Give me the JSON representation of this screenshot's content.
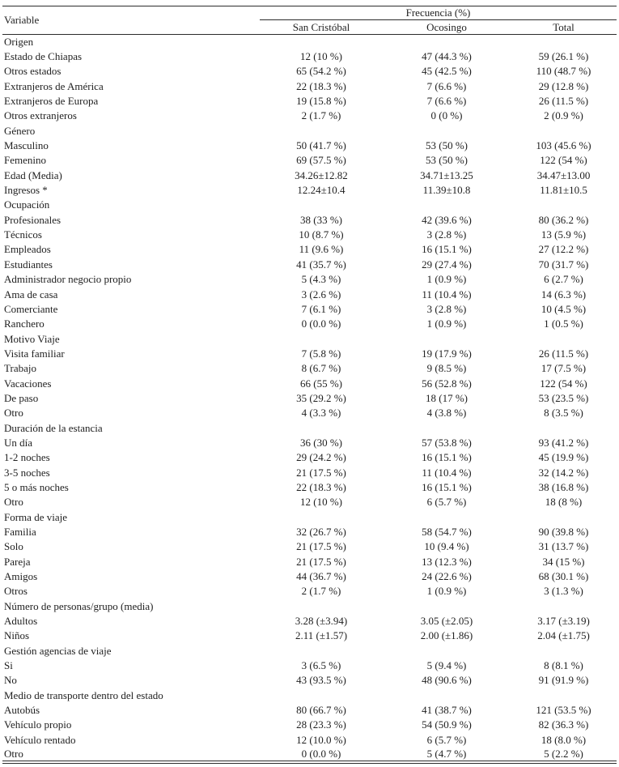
{
  "table": {
    "header": {
      "variable_label": "Variable",
      "group_label": "Frecuencia (%)",
      "columns": [
        "San Cristóbal",
        "Ocosingo",
        "Total"
      ]
    },
    "rows": [
      {
        "type": "section",
        "label": "Origen",
        "values": [
          "",
          "",
          ""
        ]
      },
      {
        "type": "data",
        "label": "Estado de Chiapas",
        "values": [
          "12 (10 %)",
          "47 (44.3 %)",
          "59 (26.1 %)"
        ]
      },
      {
        "type": "data",
        "label": "Otros estados",
        "values": [
          "65 (54.2 %)",
          "45 (42.5 %)",
          "110 (48.7 %)"
        ]
      },
      {
        "type": "data",
        "label": "Extranjeros de América",
        "values": [
          "22 (18.3 %)",
          "7 (6.6 %)",
          "29 (12.8 %)"
        ]
      },
      {
        "type": "data",
        "label": "Extranjeros de Europa",
        "values": [
          "19 (15.8 %)",
          "7 (6.6 %)",
          "26 (11.5 %)"
        ]
      },
      {
        "type": "data",
        "label": "Otros extranjeros",
        "values": [
          "2 (1.7 %)",
          "0 (0 %)",
          "2 (0.9 %)"
        ]
      },
      {
        "type": "section",
        "label": "Género",
        "values": [
          "",
          "",
          ""
        ]
      },
      {
        "type": "data",
        "label": "Masculino",
        "values": [
          "50 (41.7 %)",
          "53 (50 %)",
          "103 (45.6 %)"
        ]
      },
      {
        "type": "data",
        "label": "Femenino",
        "values": [
          "69 (57.5 %)",
          "53 (50 %)",
          "122 (54 %)"
        ]
      },
      {
        "type": "data",
        "label": "Edad (Media)",
        "values": [
          "34.26±12.82",
          "34.71±13.25",
          "34.47±13.00"
        ]
      },
      {
        "type": "data",
        "label": "Ingresos *",
        "values": [
          "12.24±10.4",
          "11.39±10.8",
          "11.81±10.5"
        ]
      },
      {
        "type": "section",
        "label": "Ocupación",
        "values": [
          "",
          "",
          ""
        ]
      },
      {
        "type": "data",
        "label": "Profesionales",
        "values": [
          "38 (33 %)",
          "42 (39.6 %)",
          "80 (36.2 %)"
        ]
      },
      {
        "type": "data",
        "label": "Técnicos",
        "values": [
          "10 (8.7 %)",
          "3 (2.8 %)",
          "13 (5.9 %)"
        ]
      },
      {
        "type": "data",
        "label": "Empleados",
        "values": [
          "11 (9.6 %)",
          "16 (15.1 %)",
          "27 (12.2 %)"
        ]
      },
      {
        "type": "data",
        "label": "Estudiantes",
        "values": [
          "41 (35.7 %)",
          "29 (27.4 %)",
          "70 (31.7 %)"
        ]
      },
      {
        "type": "data",
        "label": "Administrador negocio propio",
        "values": [
          "5 (4.3 %)",
          "1 (0.9 %)",
          "6 (2.7 %)"
        ]
      },
      {
        "type": "data",
        "label": "Ama de casa",
        "values": [
          "3 (2.6 %)",
          "11 (10.4 %)",
          "14 (6.3 %)"
        ]
      },
      {
        "type": "data",
        "label": "Comerciante",
        "values": [
          "7 (6.1 %)",
          "3 (2.8 %)",
          "10 (4.5 %)"
        ]
      },
      {
        "type": "data",
        "label": "Ranchero",
        "values": [
          "0 (0.0 %)",
          "1 (0.9 %)",
          "1 (0.5 %)"
        ]
      },
      {
        "type": "section",
        "label": "Motivo Viaje",
        "values": [
          "",
          "",
          ""
        ]
      },
      {
        "type": "data",
        "label": "Visita familiar",
        "values": [
          "7 (5.8 %)",
          "19 (17.9 %)",
          "26 (11.5 %)"
        ]
      },
      {
        "type": "data",
        "label": "Trabajo",
        "values": [
          "8 (6.7 %)",
          "9 (8.5 %)",
          "17 (7.5 %)"
        ]
      },
      {
        "type": "data",
        "label": "Vacaciones",
        "values": [
          "66 (55 %)",
          "56 (52.8 %)",
          "122 (54 %)"
        ]
      },
      {
        "type": "data",
        "label": "De paso",
        "values": [
          "35 (29.2 %)",
          "18 (17 %)",
          "53 (23.5 %)"
        ]
      },
      {
        "type": "data",
        "label": "Otro",
        "values": [
          "4 (3.3 %)",
          "4 (3.8 %)",
          "8 (3.5 %)"
        ]
      },
      {
        "type": "section",
        "label": "Duración de la estancia",
        "values": [
          "",
          "",
          ""
        ]
      },
      {
        "type": "data",
        "label": "Un día",
        "values": [
          "36 (30 %)",
          "57 (53.8 %)",
          "93 (41.2 %)"
        ]
      },
      {
        "type": "data",
        "label": "1-2 noches",
        "values": [
          "29 (24.2 %)",
          "16 (15.1 %)",
          "45 (19.9 %)"
        ]
      },
      {
        "type": "data",
        "label": "3-5 noches",
        "values": [
          "21 (17.5 %)",
          "11 (10.4 %)",
          "32 (14.2 %)"
        ]
      },
      {
        "type": "data",
        "label": "5 o más noches",
        "values": [
          "22 (18.3 %)",
          "16 (15.1 %)",
          "38 (16.8 %)"
        ]
      },
      {
        "type": "data",
        "label": "Otro",
        "values": [
          "12 (10 %)",
          "6 (5.7 %)",
          "18 (8 %)"
        ]
      },
      {
        "type": "section",
        "label": "Forma de viaje",
        "values": [
          "",
          "",
          ""
        ]
      },
      {
        "type": "data",
        "label": "Familia",
        "values": [
          "32 (26.7 %)",
          "58 (54.7 %)",
          "90 (39.8 %)"
        ]
      },
      {
        "type": "data",
        "label": "Solo",
        "values": [
          "21 (17.5 %)",
          "10 (9.4 %)",
          "31 (13.7 %)"
        ]
      },
      {
        "type": "data",
        "label": "Pareja",
        "values": [
          "21 (17.5 %)",
          "13 (12.3 %)",
          "34 (15 %)"
        ]
      },
      {
        "type": "data",
        "label": "Amigos",
        "values": [
          "44 (36.7 %)",
          "24 (22.6 %)",
          "68 (30.1 %)"
        ]
      },
      {
        "type": "data",
        "label": "Otros",
        "values": [
          "2 (1.7 %)",
          "1 (0.9 %)",
          "3 (1.3 %)"
        ]
      },
      {
        "type": "section",
        "label": "Número de personas/grupo (media)",
        "values": [
          "",
          "",
          ""
        ]
      },
      {
        "type": "data",
        "label": "Adultos",
        "values": [
          "3.28 (±3.94)",
          "3.05 (±2.05)",
          "3.17 (±3.19)"
        ]
      },
      {
        "type": "data",
        "label": "Niños",
        "values": [
          "2.11 (±1.57)",
          "2.00 (±1.86)",
          "2.04 (±1.75)"
        ]
      },
      {
        "type": "section",
        "label": "Gestión agencias de viaje",
        "values": [
          "",
          "",
          ""
        ]
      },
      {
        "type": "data",
        "label": "Si",
        "values": [
          "3 (6.5 %)",
          "5 (9.4 %)",
          "8 (8.1 %)"
        ]
      },
      {
        "type": "data",
        "label": "No",
        "values": [
          "43 (93.5 %)",
          "48 (90.6 %)",
          "91 (91.9 %)"
        ]
      },
      {
        "type": "section",
        "label": "Medio de transporte dentro del estado",
        "values": [
          "",
          "",
          ""
        ]
      },
      {
        "type": "data",
        "label": "Autobús",
        "values": [
          "80 (66.7 %)",
          "41 (38.7 %)",
          "121 (53.5 %)"
        ]
      },
      {
        "type": "data",
        "label": "Vehículo propio",
        "values": [
          "28 (23.3 %)",
          "54 (50.9 %)",
          "82 (36.3 %)"
        ]
      },
      {
        "type": "data",
        "label": "Vehículo rentado",
        "values": [
          "12 (10.0 %)",
          "6 (5.7 %)",
          "18 (8.0 %)"
        ]
      },
      {
        "type": "data",
        "label": "Otro",
        "values": [
          "0 (0.0 %)",
          "5 (4.7 %)",
          "5 (2.2 %)"
        ]
      }
    ]
  }
}
